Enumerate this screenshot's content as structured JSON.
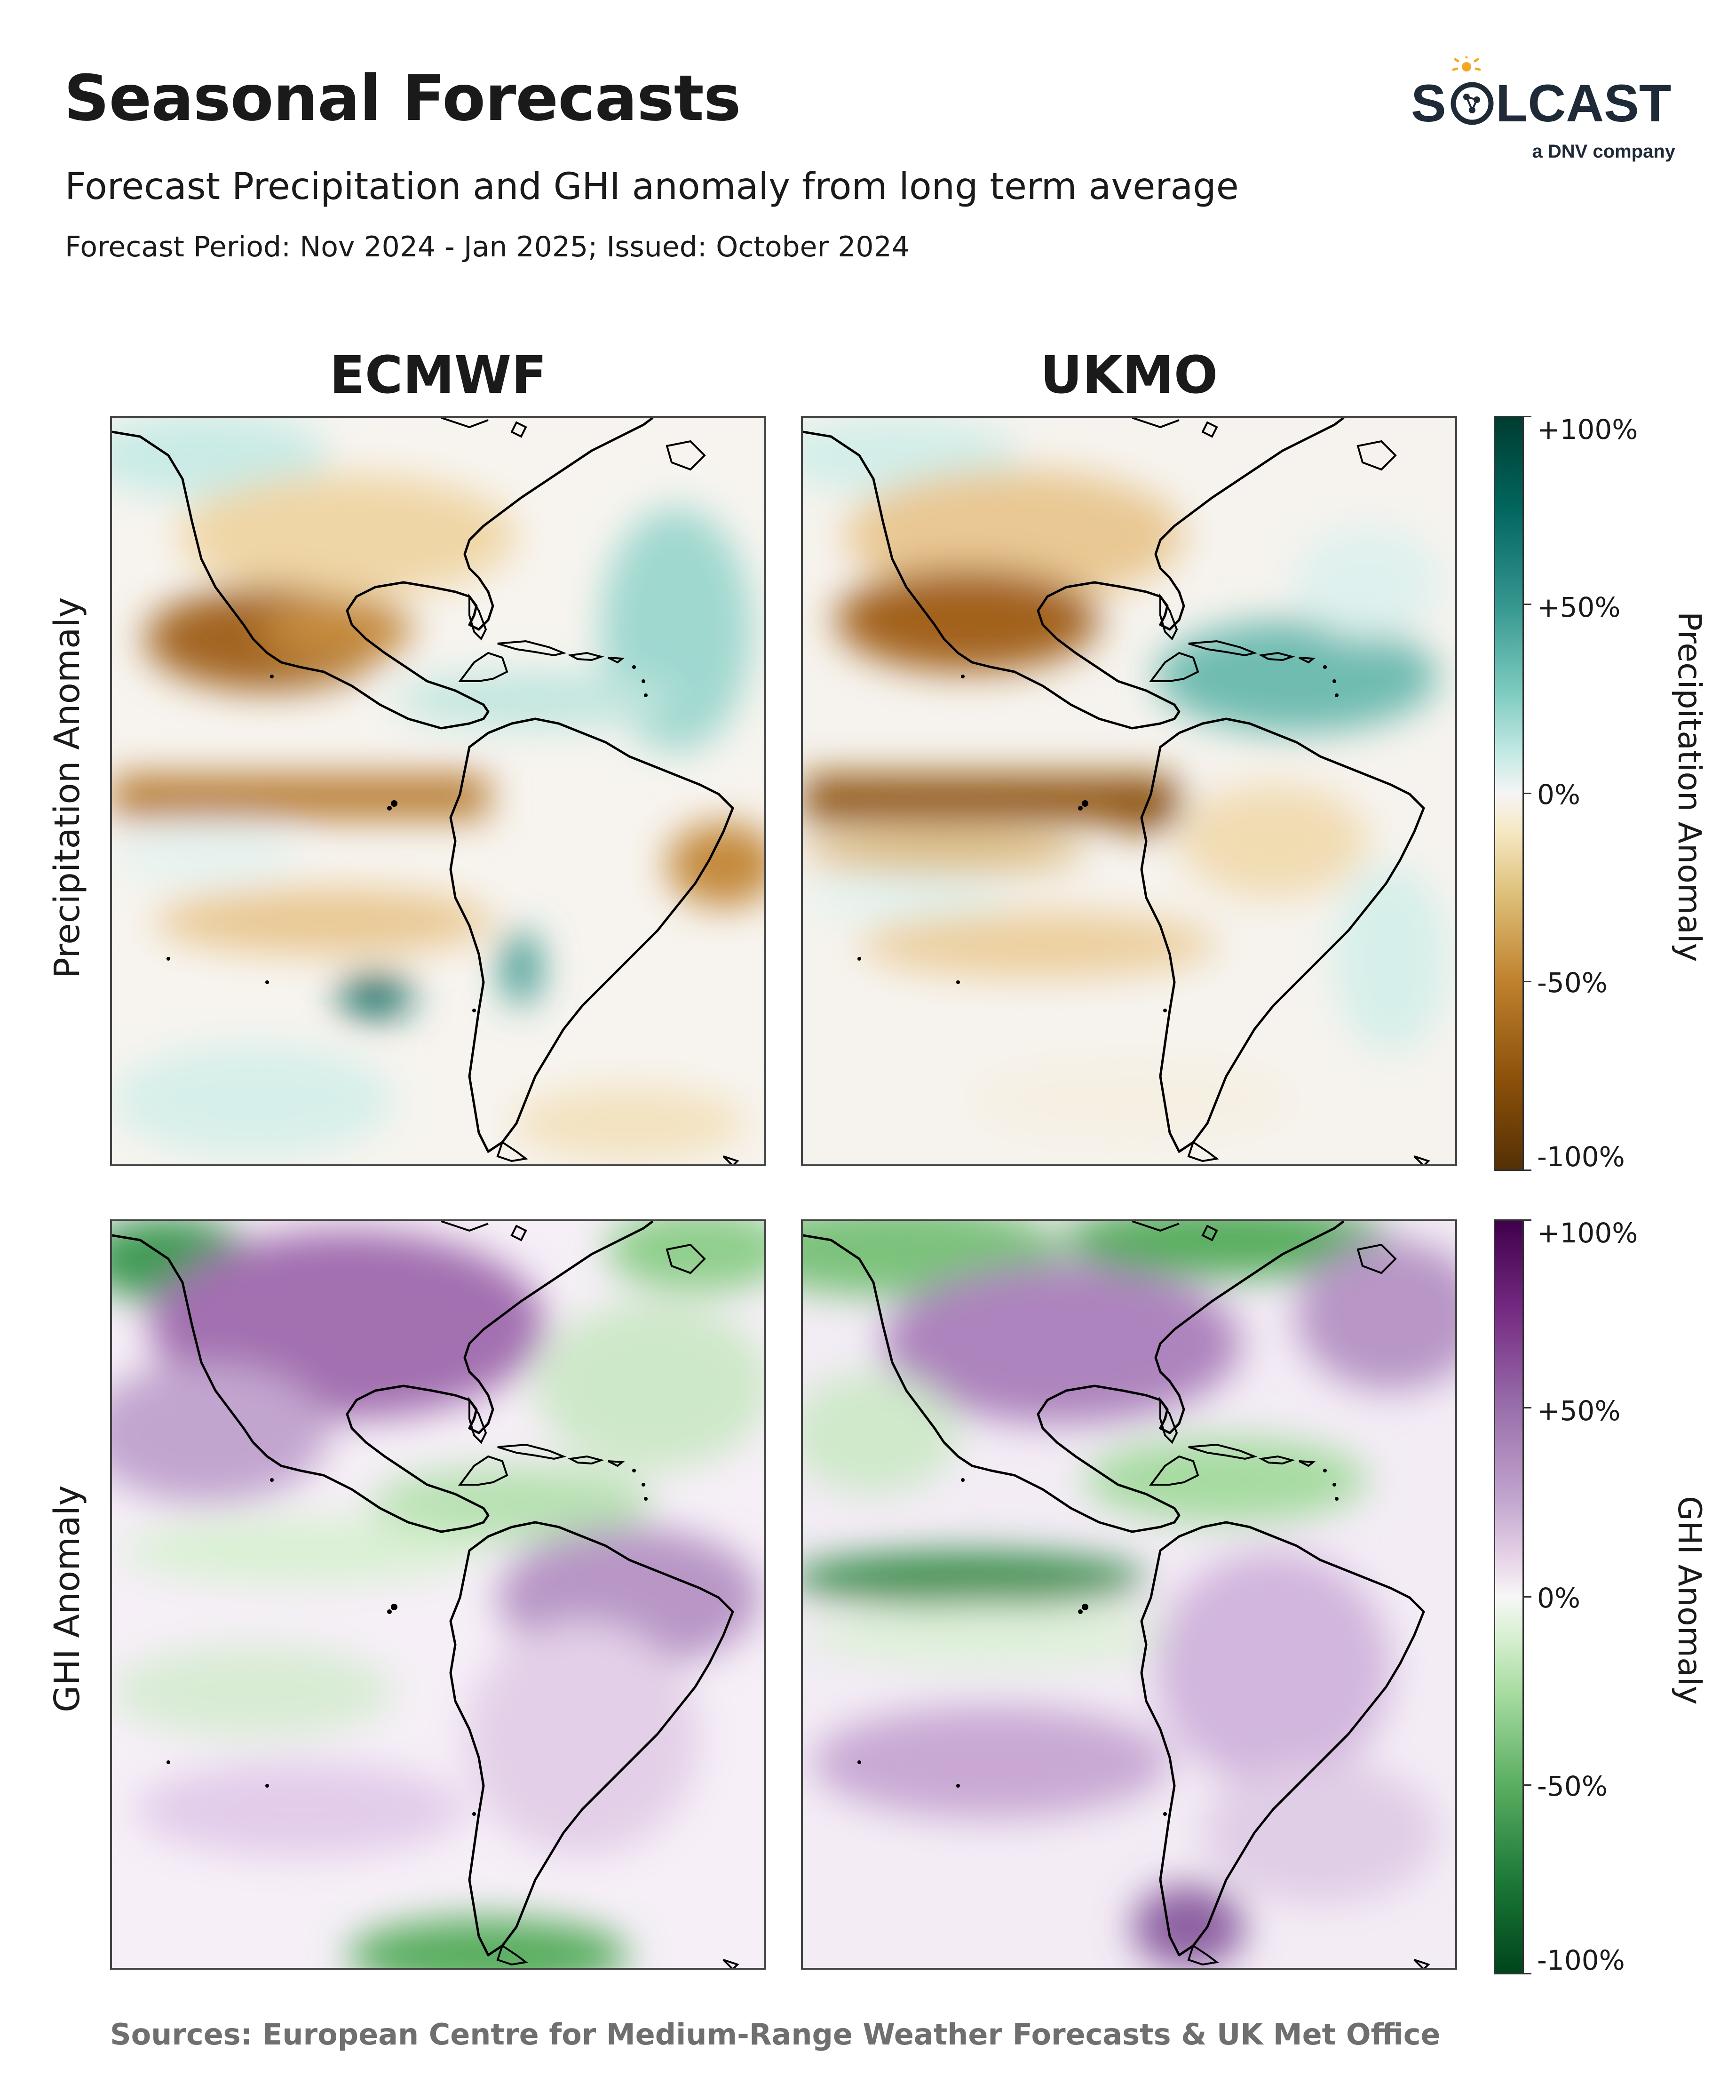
{
  "header": {
    "title": "Seasonal Forecasts",
    "subtitle": "Forecast Precipitation and GHI anomaly from long term average",
    "period": "Forecast Period: Nov 2024 - Jan 2025; Issued: October 2024"
  },
  "logo": {
    "wordmark": "SOLCAST",
    "tagline": "a DNV company",
    "sun_color": "#f5a623"
  },
  "columns": [
    "ECMWF",
    "UKMO"
  ],
  "rows": [
    "Precipitation Anomaly",
    "GHI Anomaly"
  ],
  "colorbars": {
    "precipitation": {
      "label": "Precipitation Anomaly",
      "ticks": [
        "+100%",
        "+50%",
        "0%",
        "-50%",
        "-100%"
      ],
      "colormap": "BrBG",
      "positive_color": "#01665e",
      "negative_color": "#8c510a"
    },
    "ghi": {
      "label": "GHI Anomaly",
      "ticks": [
        "+100%",
        "+50%",
        "0%",
        "-50%",
        "-100%"
      ],
      "colormap": "PRGn",
      "positive_color": "#762a83",
      "negative_color": "#1b7837"
    }
  },
  "panels": {
    "ecmwf_precip": {
      "model": "ECMWF",
      "variable": "Precipitation",
      "pattern": "drier along equatorial Pacific and western Mexico; wetter in tropical Atlantic and off southern Chile"
    },
    "ukmo_precip": {
      "model": "UKMO",
      "variable": "Precipitation",
      "pattern": "strongly drier along equatorial Pacific and Mexico; wetter over Caribbean"
    },
    "ecmwf_ghi": {
      "model": "ECMWF",
      "variable": "GHI",
      "pattern": "higher over North America and northern South America; lower over Caribbean and southern tip"
    },
    "ukmo_ghi": {
      "model": "UKMO",
      "variable": "GHI",
      "pattern": "higher over central North America and South America; lower along equatorial Pacific band and northern Canada"
    }
  },
  "footer": {
    "sources": "Sources: European Centre for Medium-Range Weather Forecasts & UK Met Office"
  }
}
